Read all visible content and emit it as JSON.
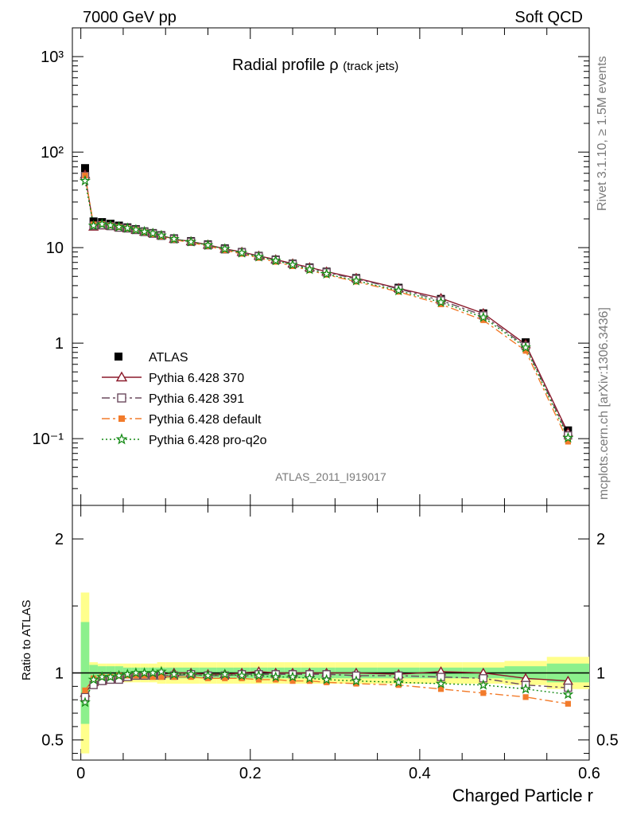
{
  "header": {
    "left_text": "7000 GeV pp",
    "right_text": "Soft QCD"
  },
  "side_labels": {
    "rivet": "Rivet 3.1.10, ≥ 1.5M events",
    "mcplots": "mcplots.cern.ch [arXiv:1306.3436]"
  },
  "analysis_id": "ATLAS_2011_I919017",
  "colors": {
    "atlas": "#000000",
    "pythia_370": "#8b1a2b",
    "pythia_391": "#6b4a5e",
    "pythia_default": "#f27b2b",
    "pythia_proq2o": "#158a15",
    "band_inner": "#8cf08c",
    "band_outer": "#ffff8c"
  },
  "chart_data": [
    {
      "type": "line",
      "title": "Radial profile ρ",
      "title_suffix": "(track jets)",
      "xlabel": "Charged Particle r",
      "ylabel": "",
      "yscale": "log",
      "xlim": [
        -0.01,
        0.6
      ],
      "ylim": [
        0.02,
        2000
      ],
      "y_ticks": [
        "10⁻¹",
        "1",
        "10",
        "10²",
        "10³"
      ],
      "legend_position": "left-middle",
      "x": [
        0.005,
        0.015,
        0.025,
        0.035,
        0.045,
        0.055,
        0.065,
        0.075,
        0.085,
        0.095,
        0.11,
        0.13,
        0.15,
        0.17,
        0.19,
        0.21,
        0.23,
        0.25,
        0.27,
        0.29,
        0.325,
        0.375,
        0.425,
        0.475,
        0.525,
        0.575
      ],
      "series": [
        {
          "name": "ATLAS",
          "values": [
            68,
            18.8,
            18.5,
            17.8,
            17.0,
            16.3,
            15.6,
            14.8,
            14.2,
            13.5,
            12.5,
            11.7,
            10.8,
            9.8,
            9.0,
            8.2,
            7.5,
            6.8,
            6.2,
            5.6,
            4.8,
            3.8,
            2.9,
            2.05,
            1.02,
            0.122
          ]
        },
        {
          "name": "Pythia 6.428 370",
          "values": [
            58,
            16.5,
            17.0,
            16.8,
            16.3,
            15.8,
            15.2,
            14.6,
            14.1,
            13.4,
            12.3,
            11.6,
            10.7,
            9.7,
            9.0,
            8.2,
            7.5,
            6.8,
            6.2,
            5.6,
            4.8,
            3.75,
            2.95,
            2.05,
            0.97,
            0.115
          ]
        },
        {
          "name": "Pythia 6.428 391",
          "values": [
            56,
            17.0,
            17.2,
            16.8,
            16.2,
            15.9,
            15.3,
            14.6,
            14.0,
            13.3,
            12.3,
            11.5,
            10.6,
            9.6,
            8.9,
            8.1,
            7.4,
            6.7,
            6.1,
            5.5,
            4.7,
            3.7,
            2.8,
            1.95,
            0.93,
            0.108
          ]
        },
        {
          "name": "Pythia 6.428 default",
          "values": [
            57,
            17.5,
            17.6,
            17.0,
            16.4,
            15.9,
            15.3,
            14.5,
            13.8,
            13.1,
            12.1,
            11.3,
            10.4,
            9.4,
            8.6,
            7.8,
            7.1,
            6.4,
            5.8,
            5.2,
            4.4,
            3.45,
            2.55,
            1.74,
            0.83,
            0.093
          ]
        },
        {
          "name": "Pythia 6.428 pro-q2o",
          "values": [
            50,
            17.0,
            17.6,
            17.1,
            16.5,
            16.0,
            15.4,
            14.7,
            14.1,
            13.4,
            12.3,
            11.5,
            10.6,
            9.7,
            8.8,
            8.0,
            7.3,
            6.6,
            5.9,
            5.3,
            4.5,
            3.55,
            2.68,
            1.86,
            0.9,
            0.102
          ]
        }
      ]
    },
    {
      "type": "line",
      "title": "",
      "xlabel": "Charged Particle r",
      "ylabel": "Ratio to ATLAS",
      "xlim": [
        -0.01,
        0.6
      ],
      "ylim": [
        0.35,
        2.25
      ],
      "x_ticks": [
        "0",
        "0.2",
        "0.4",
        "0.6"
      ],
      "y_ticks": [
        "0.5",
        "1",
        "2"
      ],
      "x": [
        0.005,
        0.015,
        0.025,
        0.035,
        0.045,
        0.055,
        0.065,
        0.075,
        0.085,
        0.095,
        0.11,
        0.13,
        0.15,
        0.17,
        0.19,
        0.21,
        0.23,
        0.25,
        0.27,
        0.29,
        0.325,
        0.375,
        0.425,
        0.475,
        0.525,
        0.575
      ],
      "bin_edges": [
        0.0,
        0.01,
        0.02,
        0.03,
        0.04,
        0.05,
        0.06,
        0.07,
        0.08,
        0.09,
        0.1,
        0.12,
        0.14,
        0.16,
        0.18,
        0.2,
        0.22,
        0.24,
        0.26,
        0.28,
        0.3,
        0.35,
        0.4,
        0.45,
        0.5,
        0.55,
        0.6
      ],
      "band_inner": [
        0.38,
        0.06,
        0.05,
        0.05,
        0.05,
        0.04,
        0.04,
        0.04,
        0.04,
        0.04,
        0.04,
        0.04,
        0.04,
        0.04,
        0.04,
        0.04,
        0.04,
        0.04,
        0.04,
        0.04,
        0.04,
        0.04,
        0.04,
        0.04,
        0.05,
        0.07
      ],
      "band_outer": [
        0.6,
        0.08,
        0.07,
        0.07,
        0.07,
        0.07,
        0.07,
        0.07,
        0.07,
        0.08,
        0.08,
        0.08,
        0.08,
        0.08,
        0.08,
        0.08,
        0.08,
        0.08,
        0.08,
        0.08,
        0.08,
        0.08,
        0.08,
        0.08,
        0.09,
        0.12
      ],
      "series": [
        {
          "name": "Pythia 6.428 370",
          "values": [
            0.85,
            0.93,
            0.94,
            0.95,
            0.96,
            0.97,
            0.98,
            0.99,
            0.99,
            0.99,
            1.0,
            1.0,
            0.99,
            0.99,
            1.0,
            1.01,
            1.0,
            1.0,
            1.0,
            1.0,
            1.0,
            0.99,
            1.01,
            1.0,
            0.96,
            0.94
          ]
        },
        {
          "name": "Pythia 6.428 391",
          "values": [
            0.82,
            0.91,
            0.94,
            0.95,
            0.95,
            0.97,
            0.98,
            0.98,
            0.98,
            0.98,
            0.98,
            0.99,
            0.98,
            0.98,
            0.99,
            0.99,
            0.99,
            0.99,
            0.99,
            0.99,
            0.98,
            0.98,
            0.97,
            0.96,
            0.91,
            0.89
          ]
        },
        {
          "name": "Pythia 6.428 default",
          "values": [
            0.87,
            0.96,
            0.97,
            0.97,
            0.98,
            0.98,
            0.98,
            0.98,
            0.97,
            0.97,
            0.97,
            0.97,
            0.96,
            0.96,
            0.96,
            0.95,
            0.95,
            0.94,
            0.94,
            0.93,
            0.92,
            0.91,
            0.88,
            0.85,
            0.82,
            0.77
          ]
        },
        {
          "name": "Pythia 6.428 pro-q2o",
          "values": [
            0.78,
            0.95,
            0.97,
            0.97,
            0.98,
            0.99,
            1.0,
            1.0,
            1.0,
            1.01,
            0.99,
            0.99,
            0.98,
            0.99,
            0.98,
            0.98,
            0.97,
            0.97,
            0.96,
            0.95,
            0.94,
            0.93,
            0.92,
            0.91,
            0.88,
            0.84
          ]
        }
      ]
    }
  ]
}
